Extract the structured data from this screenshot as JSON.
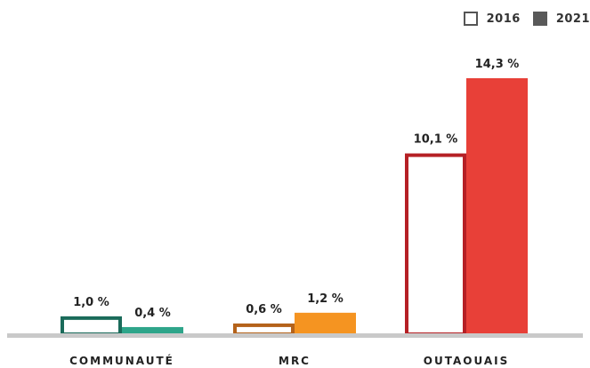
{
  "legend": {
    "items": [
      {
        "label": "2016",
        "style": "outline",
        "color": "#555555"
      },
      {
        "label": "2021",
        "style": "filled",
        "color": "#595959"
      }
    ]
  },
  "chart_data": {
    "type": "bar",
    "categories": [
      "COMMUNAUTÉ",
      "MRC",
      "OUTAOUAIS"
    ],
    "series": [
      {
        "name": "2016",
        "values": [
          1.0,
          0.6,
          10.1
        ],
        "labels": [
          "1,0 %",
          "0,6 %",
          "10,1 %"
        ],
        "style": "outline"
      },
      {
        "name": "2021",
        "values": [
          0.4,
          1.2,
          14.3
        ],
        "labels": [
          "0,4 %",
          "1,2 %",
          "14,3 %"
        ],
        "style": "filled"
      }
    ],
    "colors": [
      {
        "stroke2016": "#1a6b5a",
        "fill2021": "#2ea58a"
      },
      {
        "stroke2016": "#b4621a",
        "fill2021": "#f59421"
      },
      {
        "stroke2016": "#b52025",
        "fill2021": "#e84038"
      }
    ],
    "baseline_color": "#c9c9c9",
    "ylim": [
      0,
      15
    ],
    "grid": false,
    "legend_position": "top-right"
  }
}
